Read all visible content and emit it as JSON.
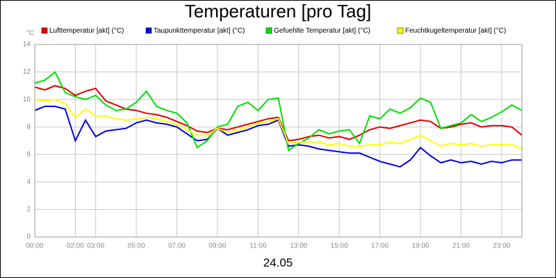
{
  "chart_data": {
    "type": "line",
    "title": "Temperaturen [pro Tag]",
    "y_unit": "°C",
    "x_label": "24.05",
    "x": [
      0,
      0.5,
      1,
      1.5,
      2,
      2.5,
      3,
      3.5,
      4,
      4.5,
      5,
      5.5,
      6,
      6.5,
      7,
      7.5,
      8,
      8.5,
      9,
      9.5,
      10,
      10.5,
      11,
      11.5,
      12,
      12.5,
      13,
      13.5,
      14,
      14.5,
      15,
      15.5,
      16,
      16.5,
      17,
      17.5,
      18,
      18.5,
      19,
      19.5,
      20,
      20.5,
      21,
      21.5,
      22,
      22.5,
      23,
      23.5,
      24
    ],
    "series": [
      {
        "name": "Lufttemperatur [akt] (°C)",
        "color": "#e00000",
        "values": [
          10.9,
          10.7,
          11.0,
          10.8,
          10.3,
          10.6,
          10.8,
          9.9,
          9.6,
          9.3,
          9.2,
          9.0,
          8.9,
          8.7,
          8.4,
          8.1,
          7.7,
          7.6,
          7.9,
          7.8,
          8.0,
          8.2,
          8.4,
          8.6,
          8.7,
          7.0,
          7.1,
          7.3,
          7.4,
          7.2,
          7.3,
          7.1,
          7.4,
          7.8,
          8.0,
          7.9,
          8.1,
          8.3,
          8.5,
          8.4,
          7.9,
          8.0,
          8.2,
          8.3,
          8.0,
          8.1,
          8.1,
          8.0,
          7.4
        ]
      },
      {
        "name": "Taupunkttemperatur [akt] (°C)",
        "color": "#0000e0",
        "values": [
          9.2,
          9.5,
          9.5,
          9.3,
          7.0,
          8.5,
          7.3,
          7.7,
          7.8,
          7.9,
          8.3,
          8.5,
          8.3,
          8.2,
          8.0,
          7.5,
          7.0,
          7.1,
          7.9,
          7.4,
          7.6,
          7.8,
          8.1,
          8.2,
          8.5,
          6.6,
          6.7,
          6.6,
          6.4,
          6.3,
          6.2,
          6.1,
          6.1,
          5.8,
          5.5,
          5.3,
          5.1,
          5.6,
          6.5,
          5.9,
          5.4,
          5.6,
          5.4,
          5.5,
          5.3,
          5.5,
          5.4,
          5.6,
          5.6
        ]
      },
      {
        "name": "Gefuehlte Temperatur [akt] (°C)",
        "color": "#00e000",
        "values": [
          11.2,
          11.4,
          12.0,
          10.5,
          10.2,
          10.0,
          10.3,
          9.6,
          9.2,
          9.3,
          9.8,
          10.6,
          9.5,
          9.2,
          9.0,
          8.3,
          6.5,
          7.0,
          8.0,
          8.2,
          9.5,
          9.8,
          9.2,
          10.0,
          10.1,
          6.3,
          6.8,
          7.2,
          7.8,
          7.5,
          7.7,
          7.8,
          6.8,
          8.8,
          8.6,
          9.3,
          9.0,
          9.4,
          10.1,
          9.8,
          7.9,
          8.1,
          8.3,
          8.9,
          8.4,
          8.7,
          9.1,
          9.6,
          9.2
        ]
      },
      {
        "name": "Feuchtkugeltemperatur [akt] (°C)",
        "color": "#ffff00",
        "values": [
          10.0,
          9.9,
          10.0,
          9.7,
          8.7,
          9.3,
          8.8,
          8.8,
          8.6,
          8.5,
          8.6,
          8.7,
          8.6,
          8.4,
          8.2,
          7.8,
          7.4,
          7.4,
          7.9,
          7.6,
          7.8,
          8.0,
          8.3,
          8.4,
          8.6,
          6.8,
          6.9,
          6.9,
          6.9,
          6.7,
          6.8,
          6.6,
          6.6,
          6.7,
          6.7,
          6.9,
          6.8,
          7.1,
          7.4,
          7.0,
          6.6,
          6.8,
          6.7,
          6.8,
          6.6,
          6.7,
          6.7,
          6.7,
          6.4
        ]
      }
    ],
    "xlim": [
      0,
      24
    ],
    "xticks": [
      {
        "value": 0,
        "label": "00:00"
      },
      {
        "value": 2,
        "label": "02:00"
      },
      {
        "value": 3,
        "label": "03:00"
      },
      {
        "value": 5,
        "label": "05:00"
      },
      {
        "value": 7,
        "label": "07:00"
      },
      {
        "value": 9,
        "label": "09:00"
      },
      {
        "value": 11,
        "label": "11:00"
      },
      {
        "value": 13,
        "label": "13:00"
      },
      {
        "value": 15,
        "label": "15:00"
      },
      {
        "value": 17,
        "label": "17:00"
      },
      {
        "value": 19,
        "label": "19:00"
      },
      {
        "value": 21,
        "label": "21:00"
      },
      {
        "value": 23,
        "label": "23:00"
      }
    ],
    "ylim": [
      0,
      14
    ],
    "yticks": [
      0,
      2,
      4,
      6,
      8,
      10,
      12,
      14
    ],
    "grid": true
  }
}
